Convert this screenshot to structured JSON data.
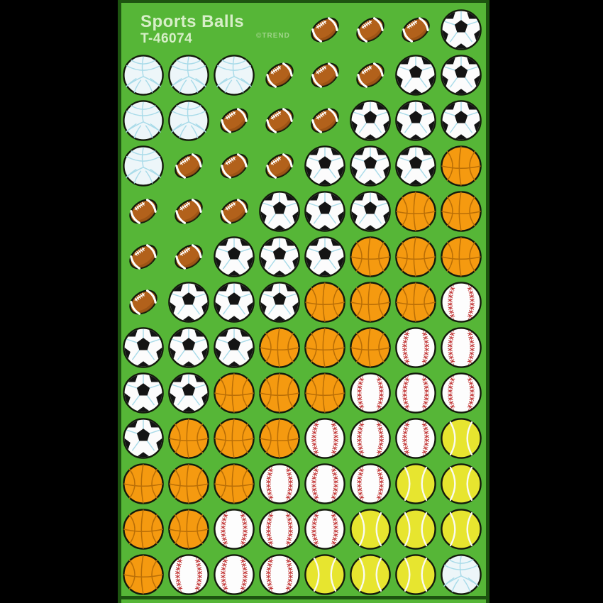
{
  "header": {
    "title": "Sports Balls",
    "product_code": "T-46074",
    "brand_mark": "©TREND"
  },
  "sheet": {
    "background": "#56b637",
    "edge_color": "#1d5410",
    "surround_color": "#000000",
    "title_color": "#d7efc8",
    "brand_color": "#9fd489"
  },
  "ball_colors": {
    "outline": "#131a0c",
    "volleyball": "#edf6f9",
    "volleyball_seam": "#a9dbe9",
    "football": "#b2611b",
    "football_shade": "#8c4a10",
    "football_stripe": "#ffffff",
    "soccer_white": "#fcfcfc",
    "soccer_black": "#141414",
    "soccer_seam": "#a9dbe9",
    "basketball": "#f59a10",
    "basketball_seam": "#b96e07",
    "baseball": "#fdfdfd",
    "baseball_stitch": "#c03030",
    "tennis": "#e7e52f",
    "tennis_seam": "#fafaf0"
  },
  "icons": [
    "volleyball-icon",
    "football-icon",
    "soccer-icon",
    "basketball-icon",
    "baseball-icon",
    "tennis-icon"
  ],
  "grid": {
    "columns": 8,
    "rows": [
      [
        "",
        "",
        "",
        "",
        "football",
        "football",
        "football",
        "soccer"
      ],
      [
        "volleyball",
        "volleyball",
        "volleyball",
        "football",
        "football",
        "football",
        "soccer",
        "soccer"
      ],
      [
        "volleyball",
        "volleyball",
        "football",
        "football",
        "football",
        "soccer",
        "soccer",
        "soccer"
      ],
      [
        "volleyball",
        "football",
        "football",
        "football",
        "soccer",
        "soccer",
        "soccer",
        "basketball"
      ],
      [
        "football",
        "football",
        "football",
        "soccer",
        "soccer",
        "soccer",
        "basketball",
        "basketball"
      ],
      [
        "football",
        "football",
        "soccer",
        "soccer",
        "soccer",
        "basketball",
        "basketball",
        "basketball"
      ],
      [
        "football",
        "soccer",
        "soccer",
        "soccer",
        "basketball",
        "basketball",
        "basketball",
        "baseball"
      ],
      [
        "soccer",
        "soccer",
        "soccer",
        "basketball",
        "basketball",
        "basketball",
        "baseball",
        "baseball"
      ],
      [
        "soccer",
        "soccer",
        "basketball",
        "basketball",
        "basketball",
        "baseball",
        "baseball",
        "baseball"
      ],
      [
        "soccer",
        "basketball",
        "basketball",
        "basketball",
        "baseball",
        "baseball",
        "baseball",
        "tennis"
      ],
      [
        "basketball",
        "basketball",
        "basketball",
        "baseball",
        "baseball",
        "baseball",
        "tennis",
        "tennis"
      ],
      [
        "basketball",
        "basketball",
        "baseball",
        "baseball",
        "baseball",
        "tennis",
        "tennis",
        "tennis"
      ],
      [
        "basketball",
        "baseball",
        "baseball",
        "baseball",
        "tennis",
        "tennis",
        "tennis",
        "volleyball"
      ]
    ]
  }
}
